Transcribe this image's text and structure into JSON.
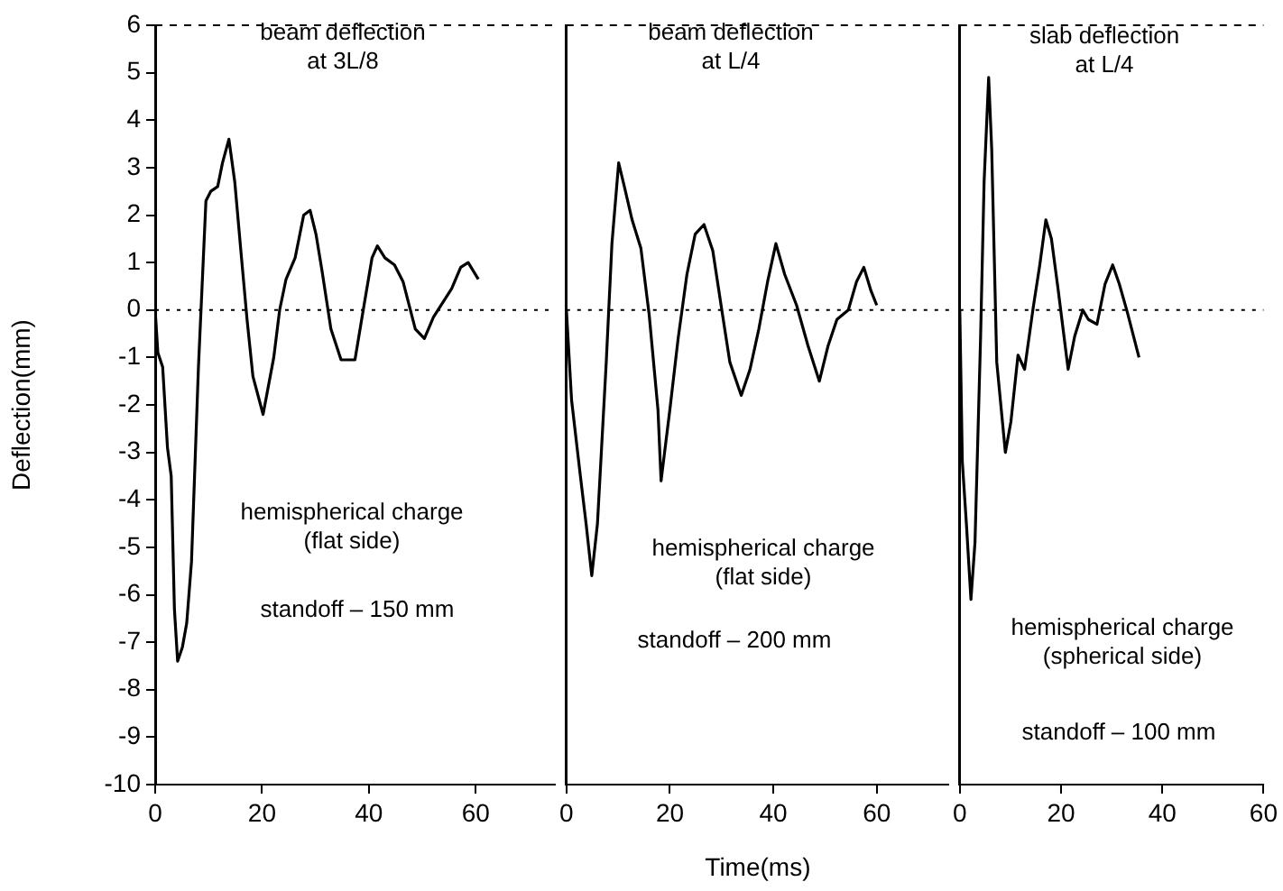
{
  "chart_data": [
    {
      "type": "line",
      "ylabel": "Deflection(mm)",
      "xlim": [
        0,
        75
      ],
      "xticks": [
        0,
        20,
        40,
        60
      ],
      "ylim": [
        -10,
        6
      ],
      "yticks": [
        -10,
        -9,
        -8,
        -7,
        -6,
        -5,
        -4,
        -3,
        -2,
        -1,
        0,
        1,
        2,
        3,
        4,
        5,
        6
      ],
      "annotations": [
        "beam deflection\nat 3L/8",
        "hemispherical charge\n(flat side)",
        "standoff – 150 mm"
      ],
      "ref_lines": [
        {
          "axis": "y",
          "value": 0,
          "line_style": "dotted"
        }
      ],
      "series": [
        {
          "color": "#000000",
          "x": [
            0,
            0.5,
            1.4,
            2.3,
            3,
            3.6,
            4.2,
            5.1,
            5.9,
            6.8,
            8.1,
            9.5,
            10.4,
            11.7,
            12.6,
            13.8,
            14.9,
            16,
            17.2,
            18.3,
            20.2,
            22.2,
            23.3,
            24.5,
            26.2,
            27.8,
            29,
            30.1,
            31.2,
            32.9,
            34.8,
            37.4,
            39.1,
            40.6,
            41.6,
            43,
            44.8,
            46.4,
            48.7,
            50.4,
            52.1,
            53.8,
            55.5,
            57.2,
            58.6,
            60.5
          ],
          "values": [
            0,
            -0.9,
            -1.2,
            -2.9,
            -3.5,
            -6.3,
            -7.4,
            -7.1,
            -6.6,
            -5.3,
            -1.2,
            2.3,
            2.5,
            2.6,
            3.1,
            3.6,
            2.7,
            1.3,
            -0.2,
            -1.4,
            -2.2,
            -1.0,
            0,
            0.65,
            1.1,
            2.0,
            2.1,
            1.6,
            0.85,
            -0.4,
            -1.05,
            -1.05,
            0.1,
            1.1,
            1.35,
            1.1,
            0.95,
            0.6,
            -0.4,
            -0.6,
            -0.15,
            0.15,
            0.45,
            0.9,
            1.0,
            0.65
          ]
        }
      ]
    },
    {
      "type": "line",
      "xlabel": "Time(ms)",
      "xlim": [
        0,
        74
      ],
      "xticks": [
        0,
        20,
        40,
        60
      ],
      "ylim": [
        -10,
        6
      ],
      "tick_labels": "x",
      "annotations": [
        "beam deflection\nat L/4",
        "hemispherical charge\n(flat side)",
        "standoff – 200 mm"
      ],
      "ref_lines": [
        {
          "axis": "y",
          "value": 0,
          "line_style": "dotted"
        }
      ],
      "series": [
        {
          "color": "#000000",
          "x": [
            0,
            1,
            2.7,
            3.8,
            4.9,
            6,
            7.7,
            8.8,
            10.1,
            11.2,
            12.7,
            14.4,
            16,
            17.7,
            18.3,
            20,
            21.6,
            23.3,
            24.9,
            26.6,
            28.3,
            29.9,
            31.6,
            33.8,
            35.5,
            37.2,
            38.9,
            40.5,
            42.2,
            44.5,
            46.7,
            48.9,
            50.6,
            52.3,
            54.5,
            56.1,
            57.5,
            58.9,
            60
          ],
          "values": [
            0,
            -1.9,
            -3.5,
            -4.5,
            -5.6,
            -4.5,
            -1.1,
            1.4,
            3.1,
            2.6,
            1.9,
            1.3,
            -0.1,
            -2.1,
            -3.6,
            -2.1,
            -0.6,
            0.75,
            1.6,
            1.8,
            1.25,
            0.1,
            -1.1,
            -1.8,
            -1.25,
            -0.4,
            0.6,
            1.4,
            0.75,
            0.1,
            -0.75,
            -1.5,
            -0.75,
            -0.2,
            0,
            0.6,
            0.9,
            0.4,
            0.1
          ]
        }
      ]
    },
    {
      "type": "line",
      "xlim": [
        0,
        60
      ],
      "xticks": [
        0,
        20,
        40,
        60
      ],
      "ylim": [
        -10,
        6
      ],
      "tick_labels": "x",
      "annotations": [
        "slab deflection\nat L/4",
        "hemispherical charge\n(spherical side)",
        "standoff – 100 mm"
      ],
      "ref_lines": [
        {
          "axis": "y",
          "value": 0,
          "line_style": "dotted"
        }
      ],
      "series": [
        {
          "color": "#000000",
          "x": [
            0,
            0.5,
            1.3,
            2.2,
            3,
            4.1,
            4.8,
            5.7,
            6.3,
            7.3,
            9,
            10.1,
            11.5,
            12.8,
            14.5,
            15.8,
            17,
            18.1,
            19.4,
            21.4,
            22.7,
            24.3,
            25.4,
            27.1,
            28.7,
            30.2,
            31.5,
            33.1,
            35.4
          ],
          "values": [
            0,
            -3.2,
            -4.5,
            -6.1,
            -4.9,
            -0.6,
            2.7,
            4.9,
            3.4,
            -1.1,
            -3.0,
            -2.35,
            -0.95,
            -1.25,
            0.05,
            0.95,
            1.9,
            1.5,
            0.45,
            -1.25,
            -0.55,
            0,
            -0.2,
            -0.3,
            0.55,
            0.95,
            0.55,
            -0.05,
            -1.0
          ]
        }
      ]
    }
  ]
}
